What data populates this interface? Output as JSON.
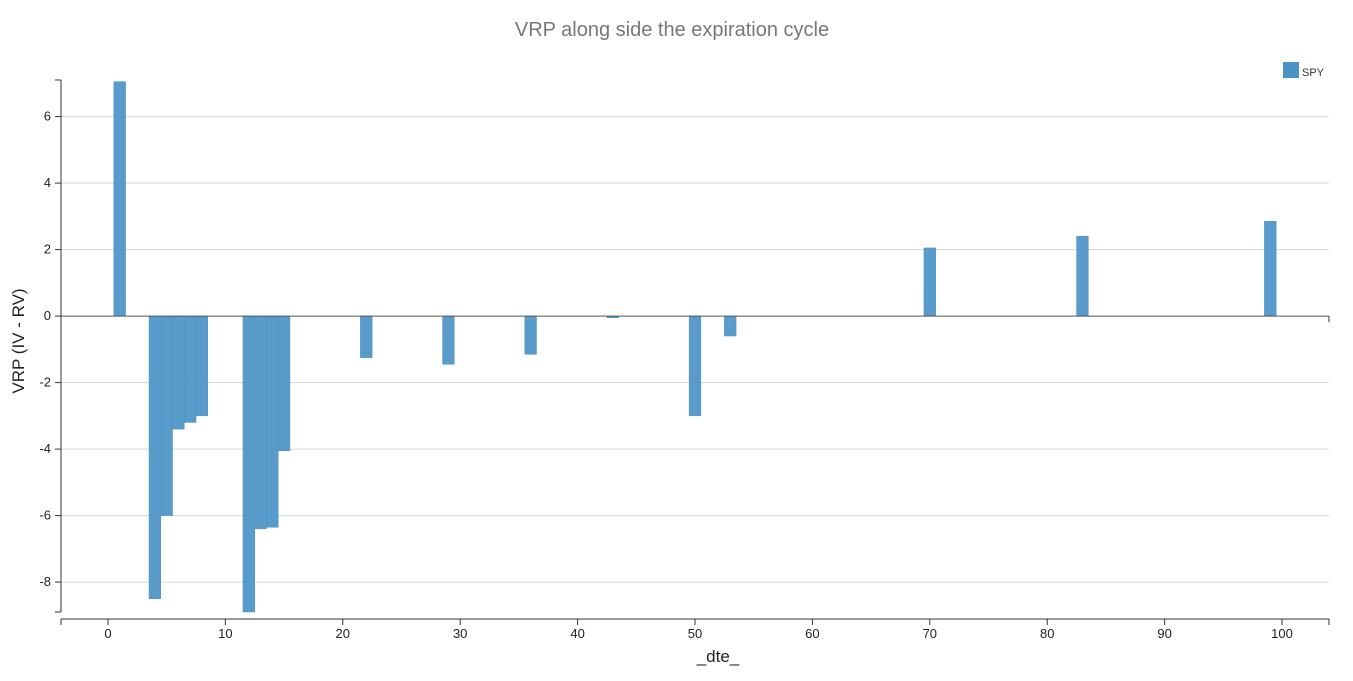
{
  "chart_data": {
    "type": "bar",
    "title": "VRP along side the expiration cycle",
    "xlabel": "_dte_",
    "ylabel": "VRP (IV - RV)",
    "xlim": [
      -4,
      104
    ],
    "ylim": [
      -8.9,
      7.1
    ],
    "xticks": [
      0,
      10,
      20,
      30,
      40,
      50,
      60,
      70,
      80,
      90,
      100
    ],
    "yticks": [
      -8,
      -6,
      -4,
      -2,
      0,
      2,
      4,
      6
    ],
    "grid": true,
    "legend_position": "top-right",
    "bar_width": 1,
    "series": [
      {
        "name": "SPY",
        "color": "#4b93c5",
        "points": [
          {
            "x": 1,
            "y": 7.05
          },
          {
            "x": 4,
            "y": -8.5
          },
          {
            "x": 5,
            "y": -6.0
          },
          {
            "x": 6,
            "y": -3.4
          },
          {
            "x": 7,
            "y": -3.2
          },
          {
            "x": 8,
            "y": -3.0
          },
          {
            "x": 12,
            "y": -8.9
          },
          {
            "x": 13,
            "y": -6.4
          },
          {
            "x": 14,
            "y": -6.35
          },
          {
            "x": 15,
            "y": -4.05
          },
          {
            "x": 22,
            "y": -1.25
          },
          {
            "x": 29,
            "y": -1.45
          },
          {
            "x": 36,
            "y": -1.15
          },
          {
            "x": 43,
            "y": -0.05
          },
          {
            "x": 50,
            "y": -3.0
          },
          {
            "x": 53,
            "y": -0.6
          },
          {
            "x": 70,
            "y": 2.05
          },
          {
            "x": 83,
            "y": 2.4
          },
          {
            "x": 99,
            "y": 2.85
          }
        ]
      }
    ]
  }
}
